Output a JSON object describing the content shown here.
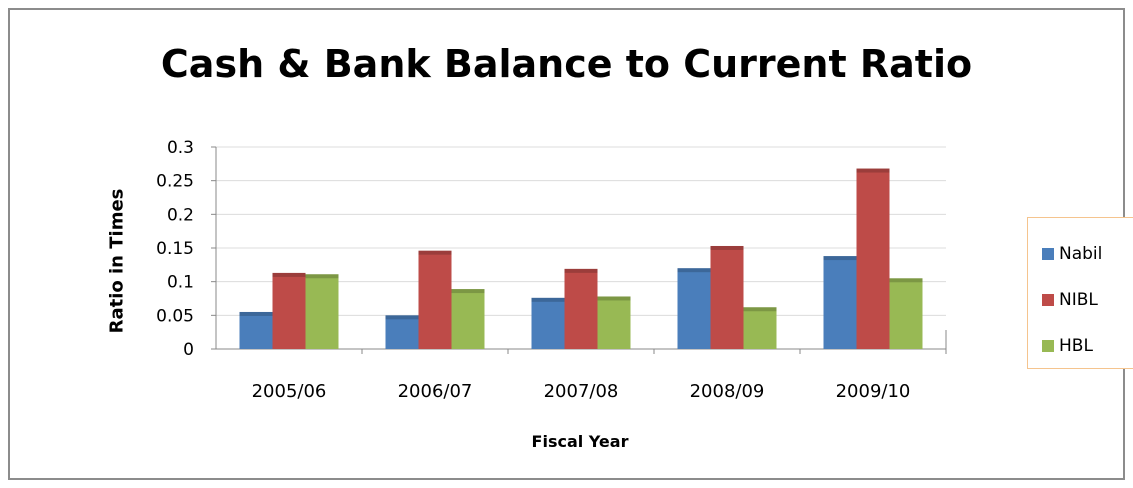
{
  "chart_data": {
    "type": "bar",
    "title": "Cash & Bank Balance to Current Ratio",
    "xlabel": "Fiscal Year",
    "ylabel": "Ratio in Times",
    "categories": [
      "2005/06",
      "2006/07",
      "2007/08",
      "2008/09",
      "2009/10"
    ],
    "series": [
      {
        "name": "Nabil",
        "color": "#4a7ebb",
        "values": [
          0.055,
          0.05,
          0.076,
          0.12,
          0.138
        ]
      },
      {
        "name": "NIBL",
        "color": "#be4b48",
        "values": [
          0.113,
          0.146,
          0.119,
          0.153,
          0.268
        ]
      },
      {
        "name": "HBL",
        "color": "#98b954",
        "values": [
          0.111,
          0.089,
          0.078,
          0.062,
          0.105
        ]
      }
    ],
    "ylim": [
      0,
      0.3
    ],
    "yticks": [
      "0",
      "0.05",
      "0.1",
      "0.15",
      "0.2",
      "0.25",
      "0.3"
    ],
    "ytick_values": [
      0,
      0.05,
      0.1,
      0.15,
      0.2,
      0.25,
      0.3
    ],
    "grid": true,
    "legend_position": "right"
  }
}
